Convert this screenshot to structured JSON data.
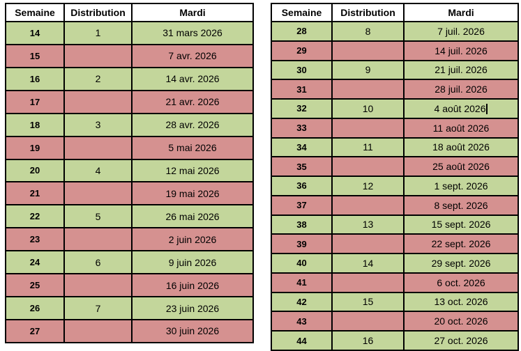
{
  "columns": [
    "Semaine",
    "Distribution",
    "Mardi"
  ],
  "colors": {
    "green": "#c3d69b",
    "red": "#d59190",
    "border": "#000000",
    "header_bg": "#ffffff",
    "text": "#000000"
  },
  "tables": [
    {
      "name": "weeks-14-27",
      "rows": [
        {
          "week": "14",
          "distribution": "1",
          "date": "31 mars 2026",
          "highlight": "green",
          "caret": false
        },
        {
          "week": "15",
          "distribution": "",
          "date": "7 avr. 2026",
          "highlight": "red",
          "caret": false
        },
        {
          "week": "16",
          "distribution": "2",
          "date": "14 avr. 2026",
          "highlight": "green",
          "caret": false
        },
        {
          "week": "17",
          "distribution": "",
          "date": "21 avr. 2026",
          "highlight": "red",
          "caret": false
        },
        {
          "week": "18",
          "distribution": "3",
          "date": "28 avr. 2026",
          "highlight": "green",
          "caret": false
        },
        {
          "week": "19",
          "distribution": "",
          "date": "5 mai 2026",
          "highlight": "red",
          "caret": false
        },
        {
          "week": "20",
          "distribution": "4",
          "date": "12 mai 2026",
          "highlight": "green",
          "caret": false
        },
        {
          "week": "21",
          "distribution": "",
          "date": "19 mai 2026",
          "highlight": "red",
          "caret": false
        },
        {
          "week": "22",
          "distribution": "5",
          "date": "26 mai 2026",
          "highlight": "green",
          "caret": false
        },
        {
          "week": "23",
          "distribution": "",
          "date": "2 juin 2026",
          "highlight": "red",
          "caret": false
        },
        {
          "week": "24",
          "distribution": "6",
          "date": "9 juin 2026",
          "highlight": "green",
          "caret": false
        },
        {
          "week": "25",
          "distribution": "",
          "date": "16 juin 2026",
          "highlight": "red",
          "caret": false
        },
        {
          "week": "26",
          "distribution": "7",
          "date": "23 juin 2026",
          "highlight": "green",
          "caret": false
        },
        {
          "week": "27",
          "distribution": "",
          "date": "30 juin 2026",
          "highlight": "red",
          "caret": false
        }
      ]
    },
    {
      "name": "weeks-28-44",
      "rows": [
        {
          "week": "28",
          "distribution": "8",
          "date": "7 juil. 2026",
          "highlight": "green",
          "caret": false
        },
        {
          "week": "29",
          "distribution": "",
          "date": "14 juil. 2026",
          "highlight": "red",
          "caret": false
        },
        {
          "week": "30",
          "distribution": "9",
          "date": "21 juil. 2026",
          "highlight": "green",
          "caret": false
        },
        {
          "week": "31",
          "distribution": "",
          "date": "28 juil. 2026",
          "highlight": "red",
          "caret": false
        },
        {
          "week": "32",
          "distribution": "10",
          "date": "4 août 2026",
          "highlight": "green",
          "caret": true
        },
        {
          "week": "33",
          "distribution": "",
          "date": "11 août 2026",
          "highlight": "red",
          "caret": false
        },
        {
          "week": "34",
          "distribution": "11",
          "date": "18 août 2026",
          "highlight": "green",
          "caret": false
        },
        {
          "week": "35",
          "distribution": "",
          "date": "25 août 2026",
          "highlight": "red",
          "caret": false
        },
        {
          "week": "36",
          "distribution": "12",
          "date": "1 sept. 2026",
          "highlight": "green",
          "caret": false
        },
        {
          "week": "37",
          "distribution": "",
          "date": "8 sept. 2026",
          "highlight": "red",
          "caret": false
        },
        {
          "week": "38",
          "distribution": "13",
          "date": "15 sept. 2026",
          "highlight": "green",
          "caret": false
        },
        {
          "week": "39",
          "distribution": "",
          "date": "22 sept. 2026",
          "highlight": "red",
          "caret": false
        },
        {
          "week": "40",
          "distribution": "14",
          "date": "29 sept. 2026",
          "highlight": "green",
          "caret": false
        },
        {
          "week": "41",
          "distribution": "",
          "date": "6 oct. 2026",
          "highlight": "red",
          "caret": false
        },
        {
          "week": "42",
          "distribution": "15",
          "date": "13 oct. 2026",
          "highlight": "green",
          "caret": false
        },
        {
          "week": "43",
          "distribution": "",
          "date": "20 oct. 2026",
          "highlight": "red",
          "caret": false
        },
        {
          "week": "44",
          "distribution": "16",
          "date": "27 oct. 2026",
          "highlight": "green",
          "caret": false
        }
      ]
    }
  ]
}
